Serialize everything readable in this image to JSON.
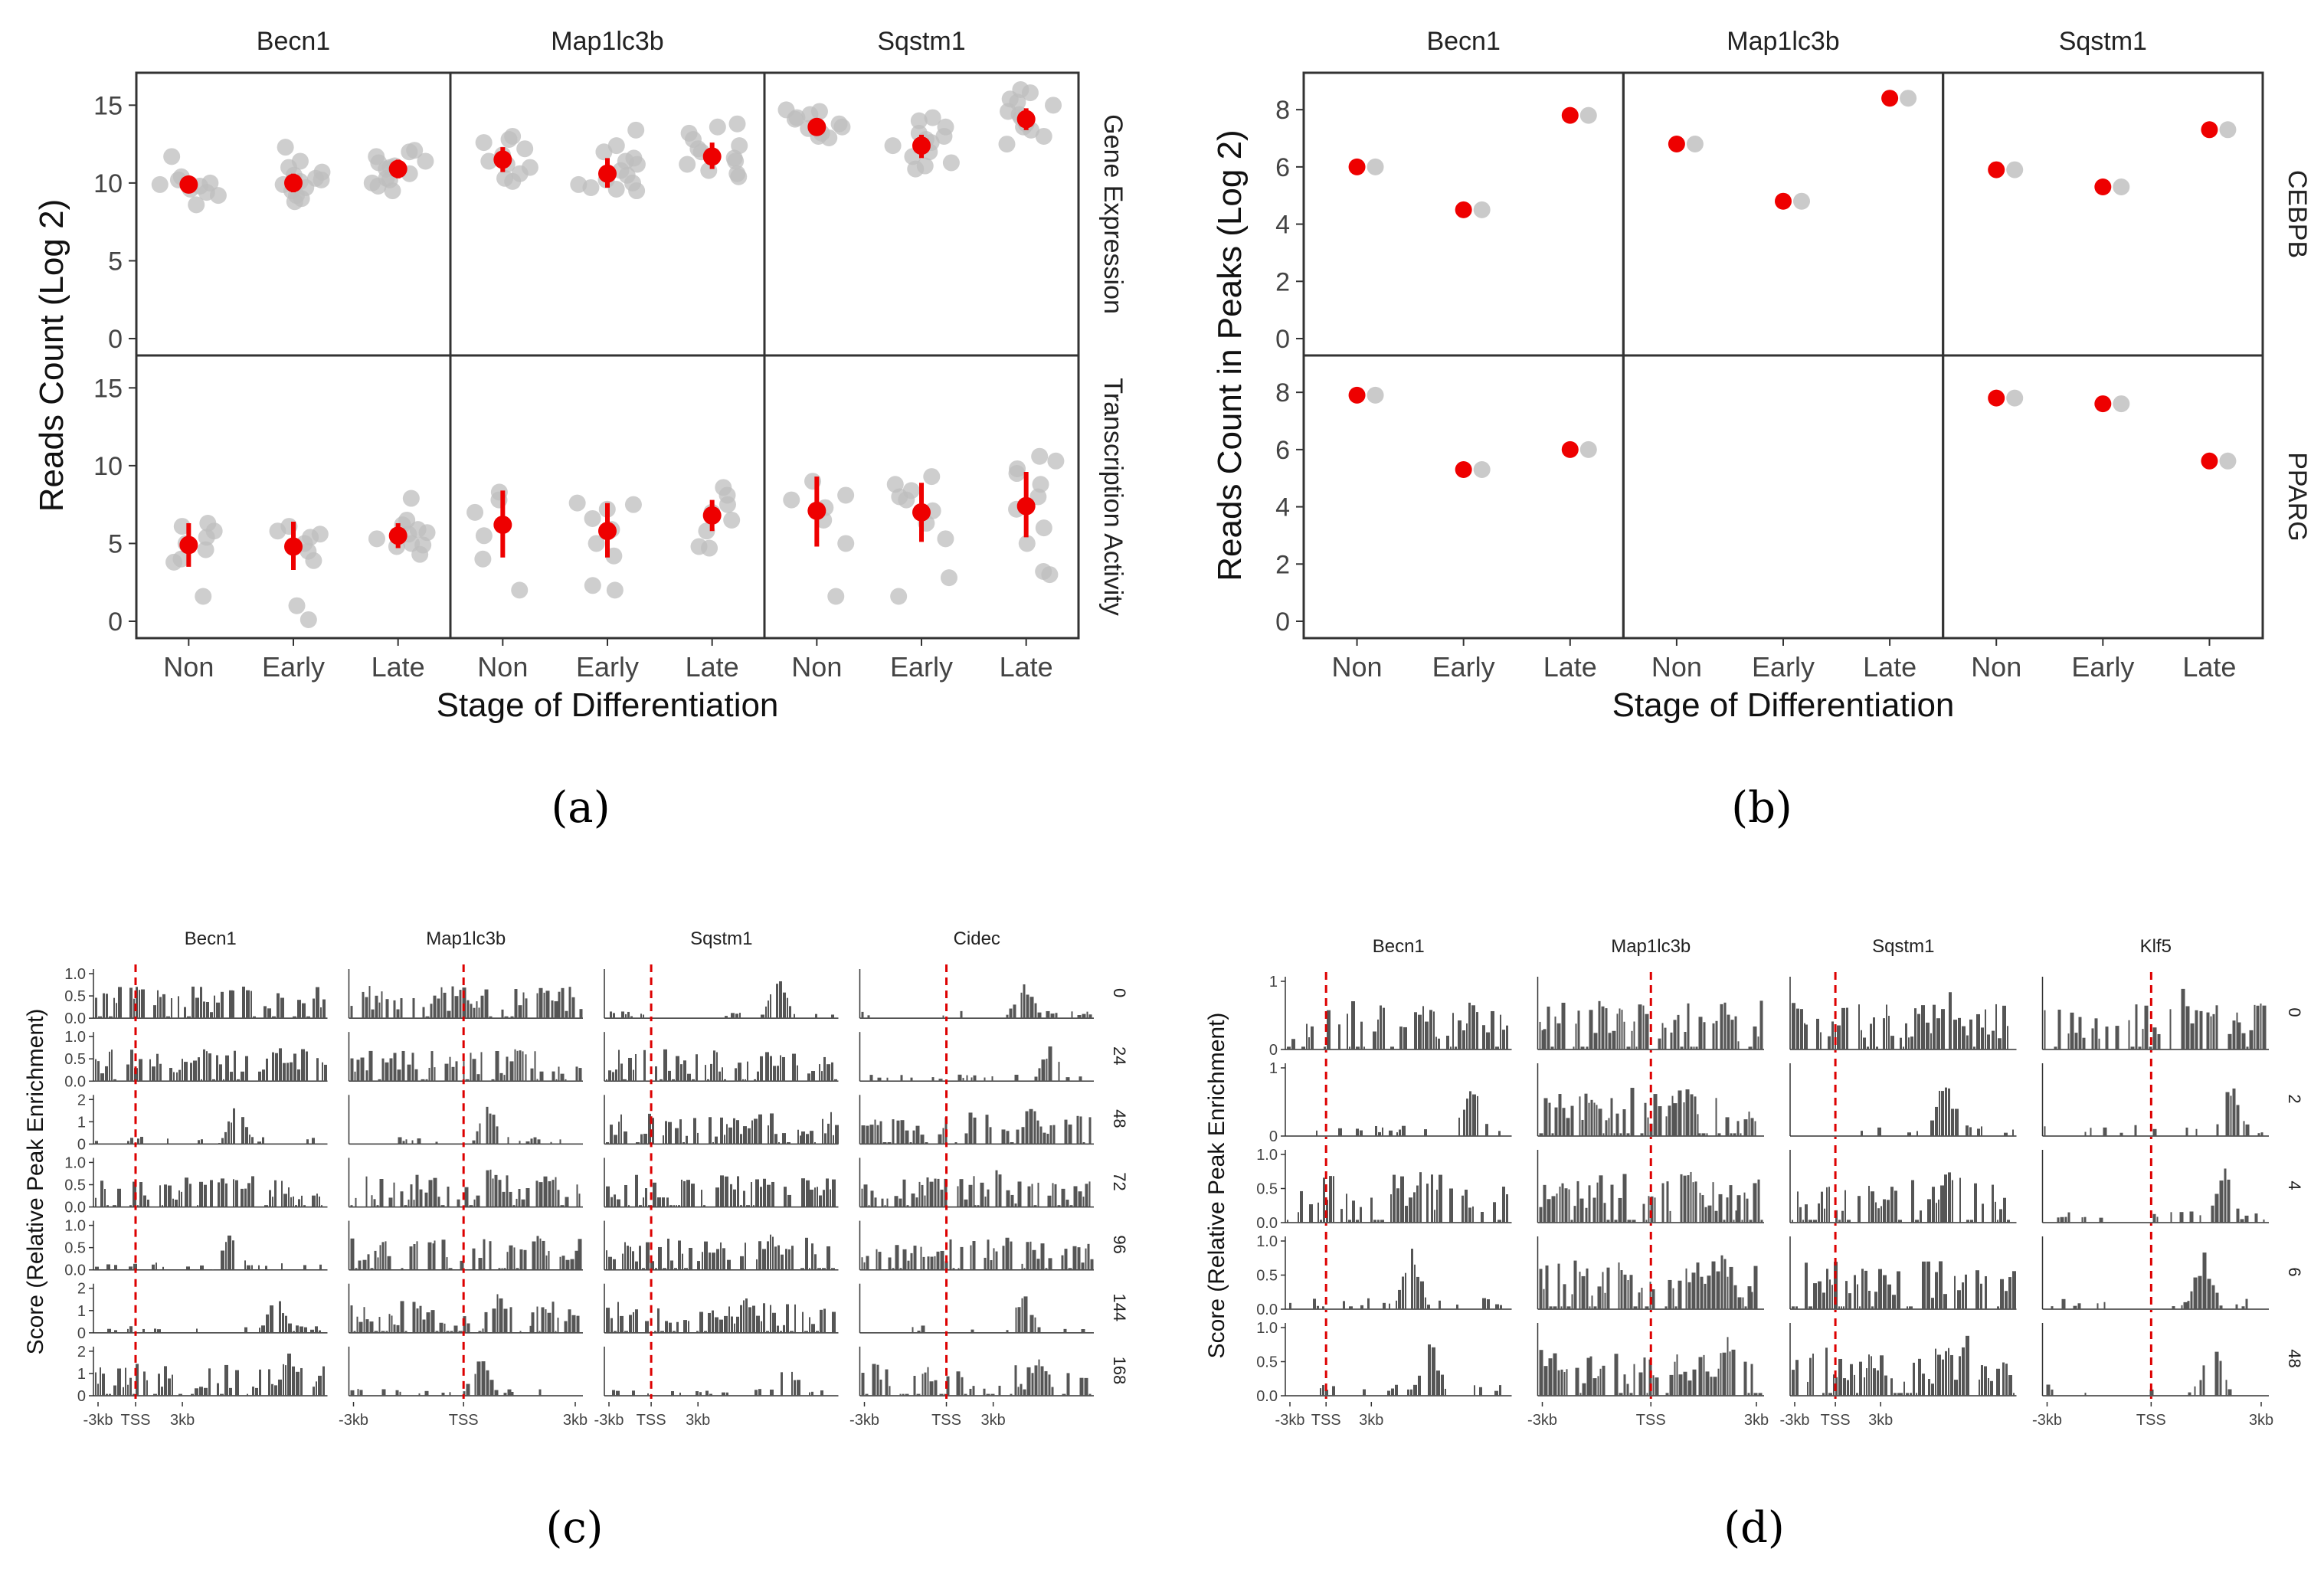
{
  "captions": {
    "a": "(a)",
    "b": "(b)",
    "c": "(c)",
    "d": "(d)"
  },
  "colors": {
    "point": "#bdbdbd",
    "mean": "#ee0000",
    "bar": "#555555",
    "tss": "#dd0000",
    "frame": "#333333",
    "text": "#444444"
  },
  "chart_data": [
    {
      "panel": "a",
      "type": "scatter",
      "xlabel": "Stage of Differentiation",
      "ylabel": "Reads Count (Log 2)",
      "facet_cols": [
        "Becn1",
        "Map1lc3b",
        "Sqstm1"
      ],
      "facet_rows": [
        "Gene Expression",
        "Transcription Activity"
      ],
      "categories": [
        "Non",
        "Early",
        "Late"
      ],
      "ylim": [
        0,
        16
      ],
      "yticks": [
        0,
        5,
        10,
        15
      ],
      "cells": [
        {
          "row": 0,
          "col": 0,
          "groups": [
            {
              "cat": "Non",
              "mean": 9.9,
              "lo": 9.5,
              "hi": 10.3,
              "points": [
                8.6,
                9.2,
                9.6,
                9.8,
                10.0,
                10.2,
                10.4,
                9.4,
                11.7,
                9.9
              ]
            },
            {
              "cat": "Early",
              "mean": 10.0,
              "lo": 9.4,
              "hi": 10.6,
              "points": [
                8.8,
                9.2,
                9.5,
                9.7,
                9.9,
                10.1,
                10.3,
                10.5,
                10.7,
                11.0,
                11.4,
                12.3,
                9.0,
                10.2
              ]
            },
            {
              "cat": "Late",
              "mean": 10.9,
              "lo": 10.3,
              "hi": 11.5,
              "points": [
                9.5,
                10.0,
                10.3,
                10.6,
                10.9,
                11.1,
                11.4,
                11.7,
                12.0,
                12.1,
                10.2,
                11.0,
                11.3,
                9.8
              ]
            }
          ]
        },
        {
          "row": 0,
          "col": 1,
          "groups": [
            {
              "cat": "Non",
              "mean": 11.5,
              "lo": 10.7,
              "hi": 12.3,
              "points": [
                10.1,
                10.6,
                11.0,
                11.4,
                11.8,
                12.2,
                12.6,
                13.0,
                11.2,
                12.8,
                10.3
              ]
            },
            {
              "cat": "Early",
              "mean": 10.6,
              "lo": 9.7,
              "hi": 11.6,
              "points": [
                9.5,
                9.7,
                9.9,
                10.2,
                10.5,
                10.8,
                11.2,
                11.6,
                12.0,
                12.4,
                13.4,
                9.6,
                10.0,
                11.4
              ]
            },
            {
              "cat": "Late",
              "mean": 11.7,
              "lo": 10.9,
              "hi": 12.6,
              "points": [
                10.4,
                10.8,
                11.2,
                11.6,
                12.0,
                12.4,
                12.8,
                13.2,
                13.6,
                13.8,
                11.4,
                12.2,
                10.6
              ]
            }
          ]
        },
        {
          "row": 0,
          "col": 2,
          "groups": [
            {
              "cat": "Non",
              "mean": 13.6,
              "lo": 13.1,
              "hi": 14.1,
              "points": [
                12.9,
                13.2,
                13.5,
                13.8,
                14.1,
                14.4,
                14.7,
                13.0,
                13.6,
                14.2,
                14.6
              ]
            },
            {
              "cat": "Early",
              "mean": 12.4,
              "lo": 11.6,
              "hi": 13.1,
              "points": [
                10.9,
                11.3,
                11.7,
                12.0,
                12.4,
                12.8,
                13.2,
                13.6,
                14.0,
                14.2,
                11.1,
                12.6,
                13.0
              ]
            },
            {
              "cat": "Late",
              "mean": 14.1,
              "lo": 13.4,
              "hi": 14.8,
              "points": [
                12.5,
                13.0,
                13.4,
                13.8,
                14.2,
                14.6,
                15.0,
                15.4,
                15.8,
                16.0,
                13.6,
                14.4,
                15.2
              ]
            }
          ]
        },
        {
          "row": 1,
          "col": 0,
          "groups": [
            {
              "cat": "Non",
              "mean": 4.9,
              "lo": 3.5,
              "hi": 6.3,
              "points": [
                1.6,
                4.0,
                4.6,
                5.0,
                5.4,
                5.8,
                6.3,
                6.1,
                3.8
              ]
            },
            {
              "cat": "Early",
              "mean": 4.8,
              "lo": 3.3,
              "hi": 6.4,
              "points": [
                0.1,
                1.0,
                3.9,
                4.5,
                5.0,
                5.4,
                5.8,
                6.1,
                5.6
              ]
            },
            {
              "cat": "Late",
              "mean": 5.5,
              "lo": 4.7,
              "hi": 6.3,
              "points": [
                4.3,
                4.8,
                5.0,
                5.3,
                5.6,
                5.9,
                6.2,
                6.5,
                7.9,
                4.9,
                5.7
              ]
            }
          ]
        },
        {
          "row": 1,
          "col": 1,
          "groups": [
            {
              "cat": "Non",
              "mean": 6.2,
              "lo": 4.1,
              "hi": 8.4,
              "points": [
                2.0,
                4.0,
                5.5,
                7.0,
                7.8,
                8.3
              ]
            },
            {
              "cat": "Early",
              "mean": 5.8,
              "lo": 4.1,
              "hi": 7.6,
              "points": [
                2.0,
                2.3,
                4.2,
                5.0,
                5.9,
                6.6,
                7.2,
                7.6,
                7.5
              ]
            },
            {
              "cat": "Late",
              "mean": 6.8,
              "lo": 5.8,
              "hi": 7.8,
              "points": [
                4.7,
                4.8,
                5.8,
                6.5,
                7.0,
                7.5,
                8.1,
                8.6
              ]
            }
          ]
        },
        {
          "row": 1,
          "col": 2,
          "groups": [
            {
              "cat": "Non",
              "mean": 7.1,
              "lo": 4.8,
              "hi": 9.3,
              "points": [
                1.6,
                5.0,
                6.5,
                7.3,
                7.8,
                8.1,
                9.0
              ]
            },
            {
              "cat": "Early",
              "mean": 7.0,
              "lo": 5.1,
              "hi": 8.9,
              "points": [
                1.6,
                2.8,
                5.3,
                6.3,
                7.1,
                7.8,
                8.4,
                8.8,
                9.3,
                8.0
              ]
            },
            {
              "cat": "Late",
              "mean": 7.4,
              "lo": 5.4,
              "hi": 9.6,
              "points": [
                3.0,
                3.2,
                5.0,
                6.0,
                7.2,
                8.0,
                8.8,
                9.5,
                9.8,
                10.3,
                10.6
              ]
            }
          ]
        }
      ]
    },
    {
      "panel": "b",
      "type": "scatter",
      "xlabel": "Stage of Differentiation",
      "ylabel": "Reads Count in Peaks (Log 2)",
      "facet_cols": [
        "Becn1",
        "Map1lc3b",
        "Sqstm1"
      ],
      "facet_rows": [
        "CEBPB",
        "PPARG"
      ],
      "categories": [
        "Non",
        "Early",
        "Late"
      ],
      "ylim": [
        0,
        8.7
      ],
      "yticks": [
        0,
        2,
        4,
        6,
        8
      ],
      "cells": [
        {
          "row": 0,
          "col": 0,
          "points": [
            {
              "cat": "Non",
              "red": 6.0,
              "grey": 6.0
            },
            {
              "cat": "Early",
              "red": 4.5,
              "grey": 4.5
            },
            {
              "cat": "Late",
              "red": 7.8,
              "grey": 7.8
            }
          ]
        },
        {
          "row": 0,
          "col": 1,
          "points": [
            {
              "cat": "Non",
              "red": 6.8,
              "grey": 6.8
            },
            {
              "cat": "Early",
              "red": 4.8,
              "grey": 4.8
            },
            {
              "cat": "Late",
              "red": 8.4,
              "grey": 8.4
            }
          ]
        },
        {
          "row": 0,
          "col": 2,
          "points": [
            {
              "cat": "Non",
              "red": 5.9,
              "grey": 5.9
            },
            {
              "cat": "Early",
              "red": 5.3,
              "grey": 5.3
            },
            {
              "cat": "Late",
              "red": 7.3,
              "grey": 7.3
            }
          ]
        },
        {
          "row": 1,
          "col": 0,
          "points": [
            {
              "cat": "Non",
              "red": 7.9,
              "grey": 7.9
            },
            {
              "cat": "Early",
              "red": 5.3,
              "grey": 5.3
            },
            {
              "cat": "Late",
              "red": 6.0,
              "grey": 6.0
            }
          ]
        },
        {
          "row": 1,
          "col": 1,
          "points": []
        },
        {
          "row": 1,
          "col": 2,
          "points": [
            {
              "cat": "Non",
              "red": 7.8,
              "grey": 7.8
            },
            {
              "cat": "Early",
              "red": 7.6,
              "grey": 7.6
            },
            {
              "cat": "Late",
              "red": 5.6,
              "grey": 5.6
            }
          ]
        }
      ]
    },
    {
      "panel": "c",
      "type": "bar",
      "ylabel": "Score (Relative Peak Enrichment)",
      "facet_cols": [
        "Becn1",
        "Map1lc3b",
        "Sqstm1",
        "Cidec"
      ],
      "facet_rows": [
        "0",
        "24",
        "48",
        "72",
        "96",
        "144",
        "168"
      ],
      "xticks": [
        [
          "-3kb",
          "TSS",
          "3kb"
        ],
        [
          "-3kb",
          "TSS",
          "3kb"
        ],
        [
          "-3kb",
          "TSS",
          "3kb"
        ],
        [
          "-3kb",
          "TSS",
          "3kb"
        ]
      ],
      "row_yticks": [
        [
          "0.0",
          "0.5",
          "1.0"
        ],
        [
          "0.0",
          "0.5",
          "1.0"
        ],
        [
          "0",
          "1",
          "2"
        ],
        [
          "0.0",
          "0.5",
          "1.0"
        ],
        [
          "0.0",
          "0.5",
          "1.0"
        ],
        [
          "0",
          "1",
          "2"
        ],
        [
          "0",
          "1",
          "2"
        ]
      ],
      "tss_position": [
        0.18,
        0.49,
        0.2,
        0.37
      ]
    },
    {
      "panel": "d",
      "type": "bar",
      "ylabel": "Score (Relative Peak Enrichment)",
      "facet_cols": [
        "Becn1",
        "Map1lc3b",
        "Sqstm1",
        "Klf5"
      ],
      "facet_rows": [
        "0",
        "2",
        "4",
        "6",
        "48"
      ],
      "xticks": [
        [
          "-3kb",
          "TSS",
          "3kb"
        ],
        [
          "-3kb",
          "TSS",
          "3kb"
        ],
        [
          "-3kb",
          "TSS",
          "3kb"
        ],
        [
          "-3kb",
          "TSS",
          "3kb"
        ]
      ],
      "row_yticks": [
        [
          "0",
          "1"
        ],
        [
          "0",
          "1"
        ],
        [
          "0.0",
          "0.5",
          "1.0"
        ],
        [
          "0.0",
          "0.5",
          "1.0"
        ],
        [
          "0.0",
          "0.5",
          "1.0"
        ]
      ],
      "tss_position": [
        0.18,
        0.5,
        0.2,
        0.48
      ]
    }
  ]
}
